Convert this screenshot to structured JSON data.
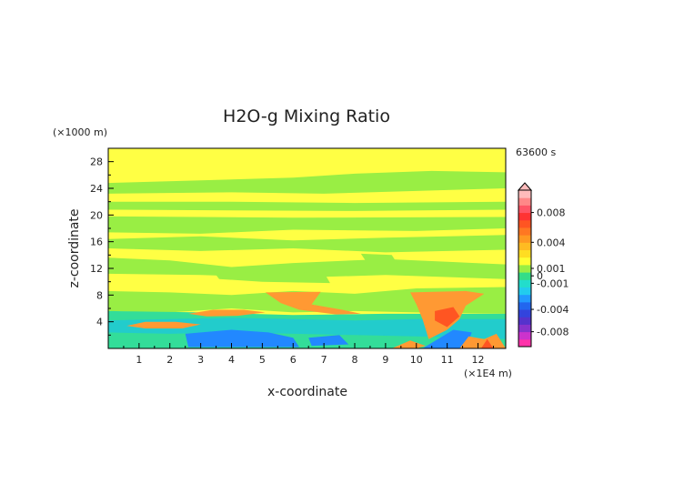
{
  "chart_data": {
    "type": "heatmap",
    "title": "H2O-g Mixing Ratio",
    "xlabel": "x-coordinate",
    "ylabel": "z-coordinate",
    "x_unit": "(×1E4 m)",
    "y_unit": "(×1000 m)",
    "time_label": "63600 s",
    "xlim": [
      0,
      12.9
    ],
    "ylim": [
      0,
      30
    ],
    "x_ticks": [
      1,
      2,
      3,
      4,
      5,
      6,
      7,
      8,
      9,
      10,
      11,
      12
    ],
    "y_ticks": [
      4,
      8,
      12,
      16,
      20,
      24,
      28
    ],
    "colorbar": {
      "labels": [
        "0.008",
        "0.004",
        "0.001",
        "0",
        "-0.001",
        "-0.004",
        "-0.008"
      ],
      "label_values": [
        0.008,
        0.004,
        0.001,
        0,
        -0.001,
        -0.004,
        -0.008
      ],
      "colors": [
        "#ff33aa",
        "#cc33cc",
        "#8833cc",
        "#5533cc",
        "#3344dd",
        "#2266ee",
        "#2299ff",
        "#22ccee",
        "#22ddcc",
        "#33dd88",
        "#99ee44",
        "#ffff33",
        "#ffdd22",
        "#ffbb22",
        "#ff9922",
        "#ff7722",
        "#ff5522",
        "#ff3333",
        "#ff5566",
        "#ff8888",
        "#ffbbbb"
      ]
    },
    "field_colors": {
      "background": "#ffff44",
      "slightly_negative": "#99ee44",
      "negative": "#33dd99",
      "more_negative": "#22cccc",
      "strong_negative": "#2288ff",
      "positive": "#ff9933",
      "strong_positive": "#ff5522"
    }
  }
}
